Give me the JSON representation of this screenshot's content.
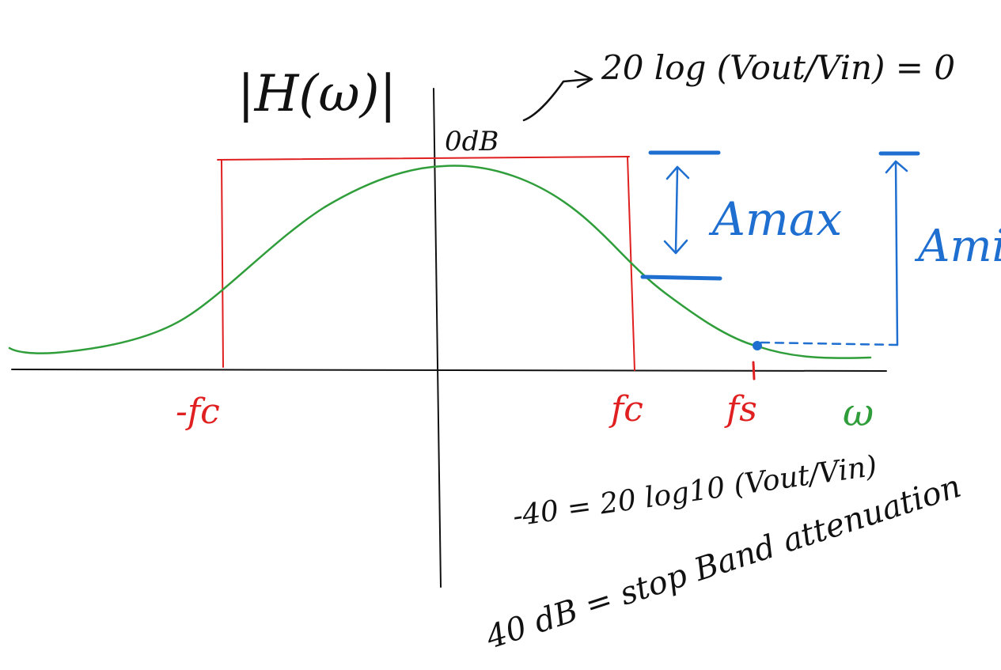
{
  "title": "|H(ω)|",
  "annotations": {
    "zero_db": "0dB",
    "zero_db_formula": "20 log (Vout/Vin) = 0",
    "a_max": "Amax",
    "a_min": "Amin",
    "stopband_equation": "-40 = 20 log10 (Vout/Vin)",
    "stopband_note": "40 dB = stop Band attenuation"
  },
  "axis_labels": {
    "neg_fc": "-fc",
    "fc": "fc",
    "fs": "fs",
    "omega": "ω"
  },
  "colors": {
    "ink": "#111111",
    "passband": "#e02020",
    "spec": "#1f6fd1",
    "response": "#2f9e3a"
  }
}
